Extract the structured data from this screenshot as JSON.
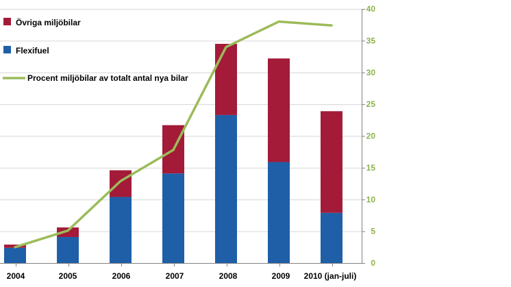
{
  "chart_data": {
    "type": "bar",
    "stacked": true,
    "categories": [
      "2004",
      "2005",
      "2006",
      "2007",
      "2008",
      "2009",
      "2010 (jan-juli)"
    ],
    "series": [
      {
        "name": "Flexifuel",
        "color": "#1f5fa8",
        "values": [
          2.4,
          4.1,
          10.4,
          14.1,
          23.3,
          15.9,
          7.9
        ]
      },
      {
        "name": "Övriga miljöbilar",
        "color": "#a31b38",
        "values": [
          0.5,
          1.5,
          4.2,
          7.6,
          11.2,
          16.3,
          16.0
        ]
      }
    ],
    "line_series": {
      "name": "Procent miljöbilar av totalt antal nya bilar",
      "color": "#9bbb59",
      "axis": "right",
      "values": [
        2.5,
        5.1,
        12.9,
        17.8,
        34.0,
        38.0,
        37.4
      ]
    },
    "right_axis": {
      "min": 0,
      "max": 40,
      "ticks": [
        0,
        5,
        10,
        15,
        20,
        25,
        30,
        35,
        40
      ],
      "color": "#8fb24a"
    },
    "legend": [
      {
        "label": "Övriga miljöbilar",
        "color": "#a31b38",
        "kind": "box"
      },
      {
        "label": "Flexifuel",
        "color": "#1f5fa8",
        "kind": "box"
      },
      {
        "label": "Procent miljöbilar av totalt antal nya bilar",
        "color": "#9bbb59",
        "kind": "line"
      }
    ],
    "legend_position": "top-left",
    "grid": true
  }
}
